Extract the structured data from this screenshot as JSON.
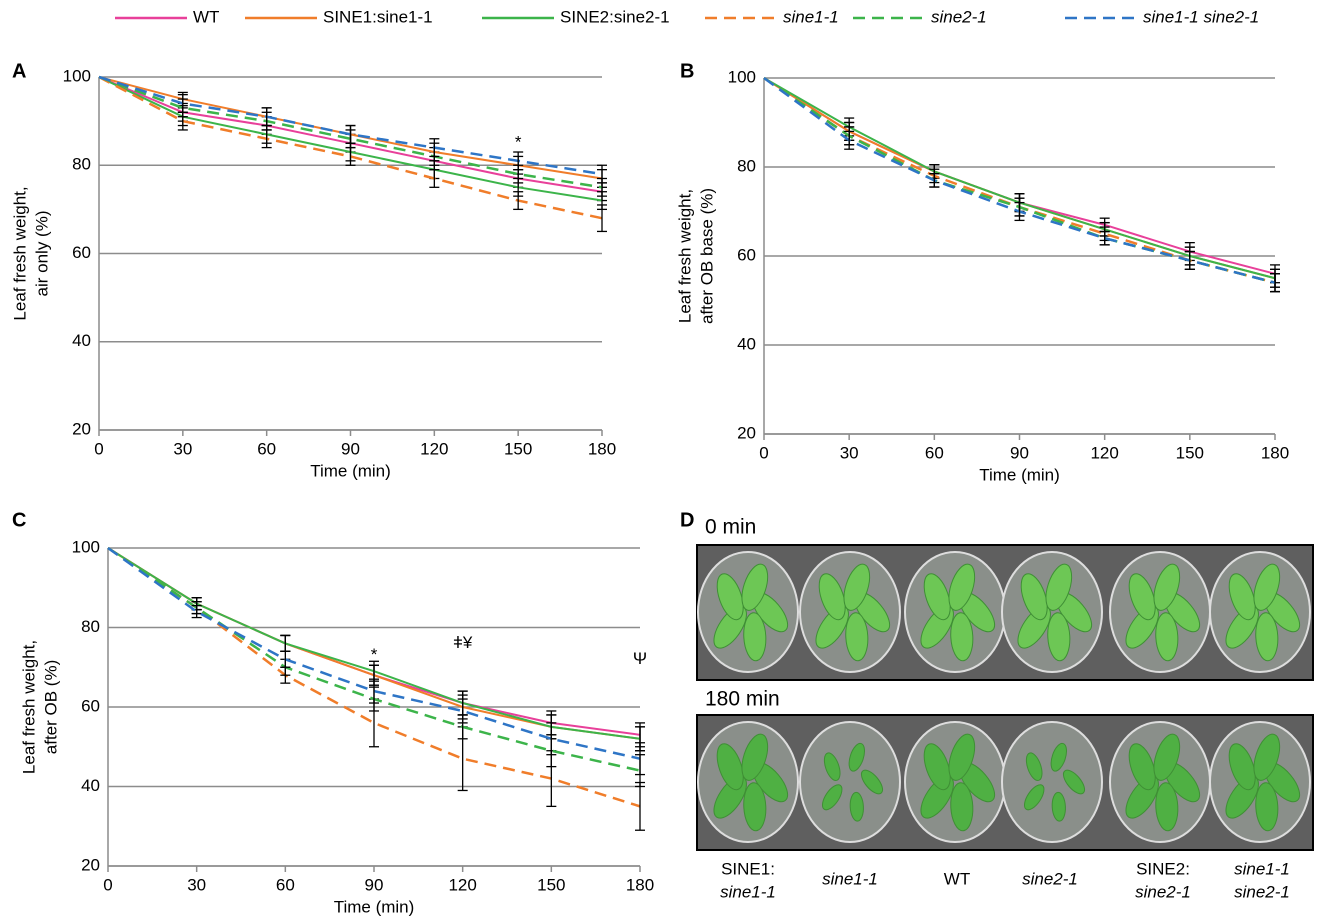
{
  "chart_data": [
    {
      "type": "line",
      "label": "A",
      "xlabel": "Time (min)",
      "ylabel": [
        "Leaf fresh weight,",
        "air only (%)"
      ],
      "x": [
        0,
        30,
        60,
        90,
        120,
        150,
        180
      ],
      "xlim": [
        0,
        180
      ],
      "xticks": [
        0,
        30,
        60,
        90,
        120,
        150,
        180
      ],
      "ylim": [
        20,
        100
      ],
      "yticks": [
        20,
        40,
        60,
        80,
        100
      ],
      "grid": true,
      "series": [
        {
          "name": "WT",
          "color": "#e8409a",
          "dash": false,
          "values": [
            100,
            92,
            89,
            85,
            81,
            77,
            74
          ],
          "errors": [
            0,
            2,
            2,
            2,
            2,
            2,
            2
          ]
        },
        {
          "name": "SINE1:sine1-1",
          "color": "#f07d2a",
          "dash": false,
          "values": [
            100,
            95,
            91,
            87,
            83,
            80,
            77
          ],
          "errors": [
            0,
            1.5,
            2,
            2,
            2,
            2,
            2
          ]
        },
        {
          "name": "SINE2:sine2-1",
          "color": "#3cb44a",
          "dash": false,
          "values": [
            100,
            91,
            87,
            83,
            79,
            75,
            72
          ],
          "errors": [
            0,
            2,
            2,
            2,
            2,
            2,
            2
          ]
        },
        {
          "name": "sine1-1",
          "color": "#f07d2a",
          "dash": true,
          "values": [
            100,
            90,
            86,
            82,
            77,
            72,
            68
          ],
          "errors": [
            0,
            2,
            2,
            2,
            2,
            2,
            3
          ]
        },
        {
          "name": "sine2-1",
          "color": "#3cb44a",
          "dash": true,
          "values": [
            100,
            93,
            90,
            86,
            82,
            78,
            75
          ],
          "errors": [
            0,
            2,
            2,
            2,
            2,
            2,
            2
          ]
        },
        {
          "name": "sine1-1 sine2-1",
          "color": "#2e75c6",
          "dash": true,
          "values": [
            100,
            94,
            91,
            87,
            84,
            81,
            78
          ],
          "errors": [
            0,
            2,
            2,
            2,
            2,
            2,
            2
          ]
        }
      ],
      "annotations": [
        {
          "x": 150,
          "y": 85,
          "text": "*"
        }
      ]
    },
    {
      "type": "line",
      "label": "B",
      "xlabel": "Time (min)",
      "ylabel": [
        "Leaf fresh weight,",
        "after OB base (%)"
      ],
      "x": [
        0,
        30,
        60,
        90,
        120,
        150,
        180
      ],
      "xlim": [
        0,
        180
      ],
      "xticks": [
        0,
        30,
        60,
        90,
        120,
        150,
        180
      ],
      "ylim": [
        20,
        100
      ],
      "yticks": [
        20,
        40,
        60,
        80,
        100
      ],
      "grid": true,
      "series": [
        {
          "name": "WT",
          "color": "#e8409a",
          "dash": false,
          "values": [
            100,
            88,
            79,
            72,
            67,
            61,
            56
          ],
          "errors": [
            0,
            2,
            1.5,
            2,
            1.5,
            2,
            2
          ]
        },
        {
          "name": "SINE1:sine1-1",
          "color": "#f07d2a",
          "dash": false,
          "values": [
            100,
            88,
            79,
            72,
            66,
            60,
            55
          ],
          "errors": [
            0,
            2,
            1.5,
            2,
            1.5,
            2,
            2
          ]
        },
        {
          "name": "SINE2:sine2-1",
          "color": "#3cb44a",
          "dash": false,
          "values": [
            100,
            89,
            79,
            72,
            66,
            60,
            55
          ],
          "errors": [
            0,
            2,
            1.5,
            2,
            1.5,
            2,
            2
          ]
        },
        {
          "name": "sine1-1",
          "color": "#f07d2a",
          "dash": true,
          "values": [
            100,
            87,
            78,
            71,
            65,
            59,
            54
          ],
          "errors": [
            0,
            2,
            1.5,
            2,
            1.5,
            2,
            2
          ]
        },
        {
          "name": "sine2-1",
          "color": "#3cb44a",
          "dash": true,
          "values": [
            100,
            87,
            77,
            71,
            64,
            59,
            54
          ],
          "errors": [
            0,
            2,
            1.5,
            2,
            1.5,
            2,
            2
          ]
        },
        {
          "name": "sine1-1 sine2-1",
          "color": "#2e75c6",
          "dash": true,
          "values": [
            100,
            86,
            77,
            70,
            64,
            59,
            54
          ],
          "errors": [
            0,
            2,
            1.5,
            2,
            1.5,
            2,
            2
          ]
        }
      ],
      "annotations": []
    },
    {
      "type": "line",
      "label": "C",
      "xlabel": "Time (min)",
      "ylabel": [
        "Leaf fresh weight,",
        "after OB (%)"
      ],
      "x": [
        0,
        30,
        60,
        90,
        120,
        150,
        180
      ],
      "xlim": [
        0,
        180
      ],
      "xticks": [
        0,
        30,
        60,
        90,
        120,
        150,
        180
      ],
      "ylim": [
        20,
        100
      ],
      "yticks": [
        20,
        40,
        60,
        80,
        100
      ],
      "grid": true,
      "series": [
        {
          "name": "WT",
          "color": "#e8409a",
          "dash": false,
          "values": [
            100,
            86,
            76,
            68,
            61,
            56,
            53
          ],
          "errors": [
            0,
            1.5,
            2,
            2.5,
            3,
            3,
            3
          ]
        },
        {
          "name": "SINE1:sine1-1",
          "color": "#f07d2a",
          "dash": false,
          "values": [
            100,
            86,
            76,
            68,
            60,
            55,
            52
          ],
          "errors": [
            0,
            1.5,
            2,
            2.5,
            3,
            3,
            3
          ]
        },
        {
          "name": "SINE2:sine2-1",
          "color": "#3cb44a",
          "dash": false,
          "values": [
            100,
            86,
            76,
            69,
            61,
            55,
            52
          ],
          "errors": [
            0,
            1.5,
            2,
            2.5,
            3,
            3,
            3
          ]
        },
        {
          "name": "sine1-1",
          "color": "#f07d2a",
          "dash": true,
          "values": [
            100,
            85,
            68,
            56,
            47,
            42,
            35
          ],
          "errors": [
            0,
            1.5,
            2,
            6,
            8,
            7,
            6
          ]
        },
        {
          "name": "sine2-1",
          "color": "#3cb44a",
          "dash": true,
          "values": [
            100,
            85,
            70,
            62,
            55,
            49,
            44
          ],
          "errors": [
            0,
            1.5,
            2,
            3,
            3,
            4,
            4
          ]
        },
        {
          "name": "sine1-1 sine2-1",
          "color": "#2e75c6",
          "dash": true,
          "values": [
            100,
            84,
            72,
            64,
            59,
            52,
            47
          ],
          "errors": [
            0,
            1.5,
            2,
            3,
            3,
            4,
            4
          ]
        }
      ],
      "annotations": [
        {
          "x": 90,
          "y": 73,
          "text": "*"
        },
        {
          "x": 120,
          "y": 76,
          "text": "ǂ¥"
        },
        {
          "x": 180,
          "y": 72,
          "text": "Ψ"
        }
      ]
    }
  ],
  "panel_d": {
    "label": "D",
    "timepoints": [
      "0 min",
      "180 min"
    ],
    "genotypes": [
      [
        "SINE1:",
        "sine1-1"
      ],
      [
        "sine1-1"
      ],
      [
        "WT"
      ],
      [
        "sine2-1"
      ],
      [
        "SINE2:",
        "sine2-1"
      ],
      [
        "sine1-1",
        "sine2-1"
      ]
    ]
  }
}
